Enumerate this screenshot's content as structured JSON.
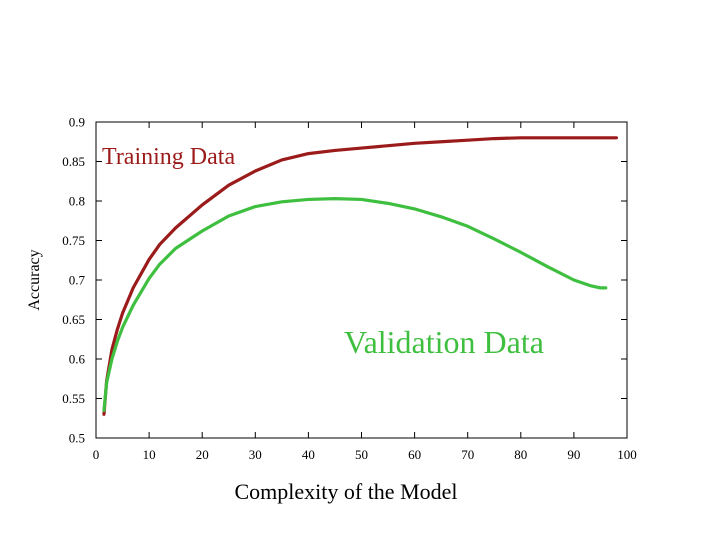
{
  "chart_data": {
    "type": "line",
    "xlabel": "Complexity of the Model",
    "ylabel": "Accuracy",
    "xlim": [
      0,
      100
    ],
    "ylim": [
      0.5,
      0.9
    ],
    "xticks": [
      0,
      10,
      20,
      30,
      40,
      50,
      60,
      70,
      80,
      90,
      100
    ],
    "yticks": [
      0.5,
      0.55,
      0.6,
      0.65,
      0.7,
      0.75,
      0.8,
      0.85,
      0.9
    ],
    "grid": false,
    "series": [
      {
        "name": "Training Data",
        "color": "#9b1b1b",
        "x": [
          1.5,
          2,
          3,
          4,
          5,
          7,
          10,
          12,
          15,
          20,
          25,
          30,
          35,
          40,
          45,
          50,
          55,
          60,
          65,
          70,
          75,
          80,
          85,
          90,
          95,
          98
        ],
        "y": [
          0.53,
          0.572,
          0.612,
          0.637,
          0.658,
          0.69,
          0.726,
          0.745,
          0.766,
          0.795,
          0.82,
          0.838,
          0.852,
          0.86,
          0.864,
          0.867,
          0.87,
          0.873,
          0.875,
          0.877,
          0.879,
          0.88,
          0.88,
          0.88,
          0.88,
          0.88
        ]
      },
      {
        "name": "Validation Data",
        "color": "#3fbf3f",
        "x": [
          1.5,
          2,
          3,
          4,
          5,
          7,
          10,
          12,
          15,
          20,
          25,
          30,
          35,
          40,
          45,
          50,
          55,
          60,
          65,
          70,
          75,
          80,
          85,
          90,
          93,
          95,
          96
        ],
        "y": [
          0.535,
          0.57,
          0.6,
          0.622,
          0.64,
          0.668,
          0.702,
          0.72,
          0.74,
          0.762,
          0.781,
          0.793,
          0.799,
          0.802,
          0.803,
          0.802,
          0.797,
          0.79,
          0.78,
          0.768,
          0.752,
          0.735,
          0.717,
          0.7,
          0.693,
          0.69,
          0.69
        ]
      }
    ]
  }
}
